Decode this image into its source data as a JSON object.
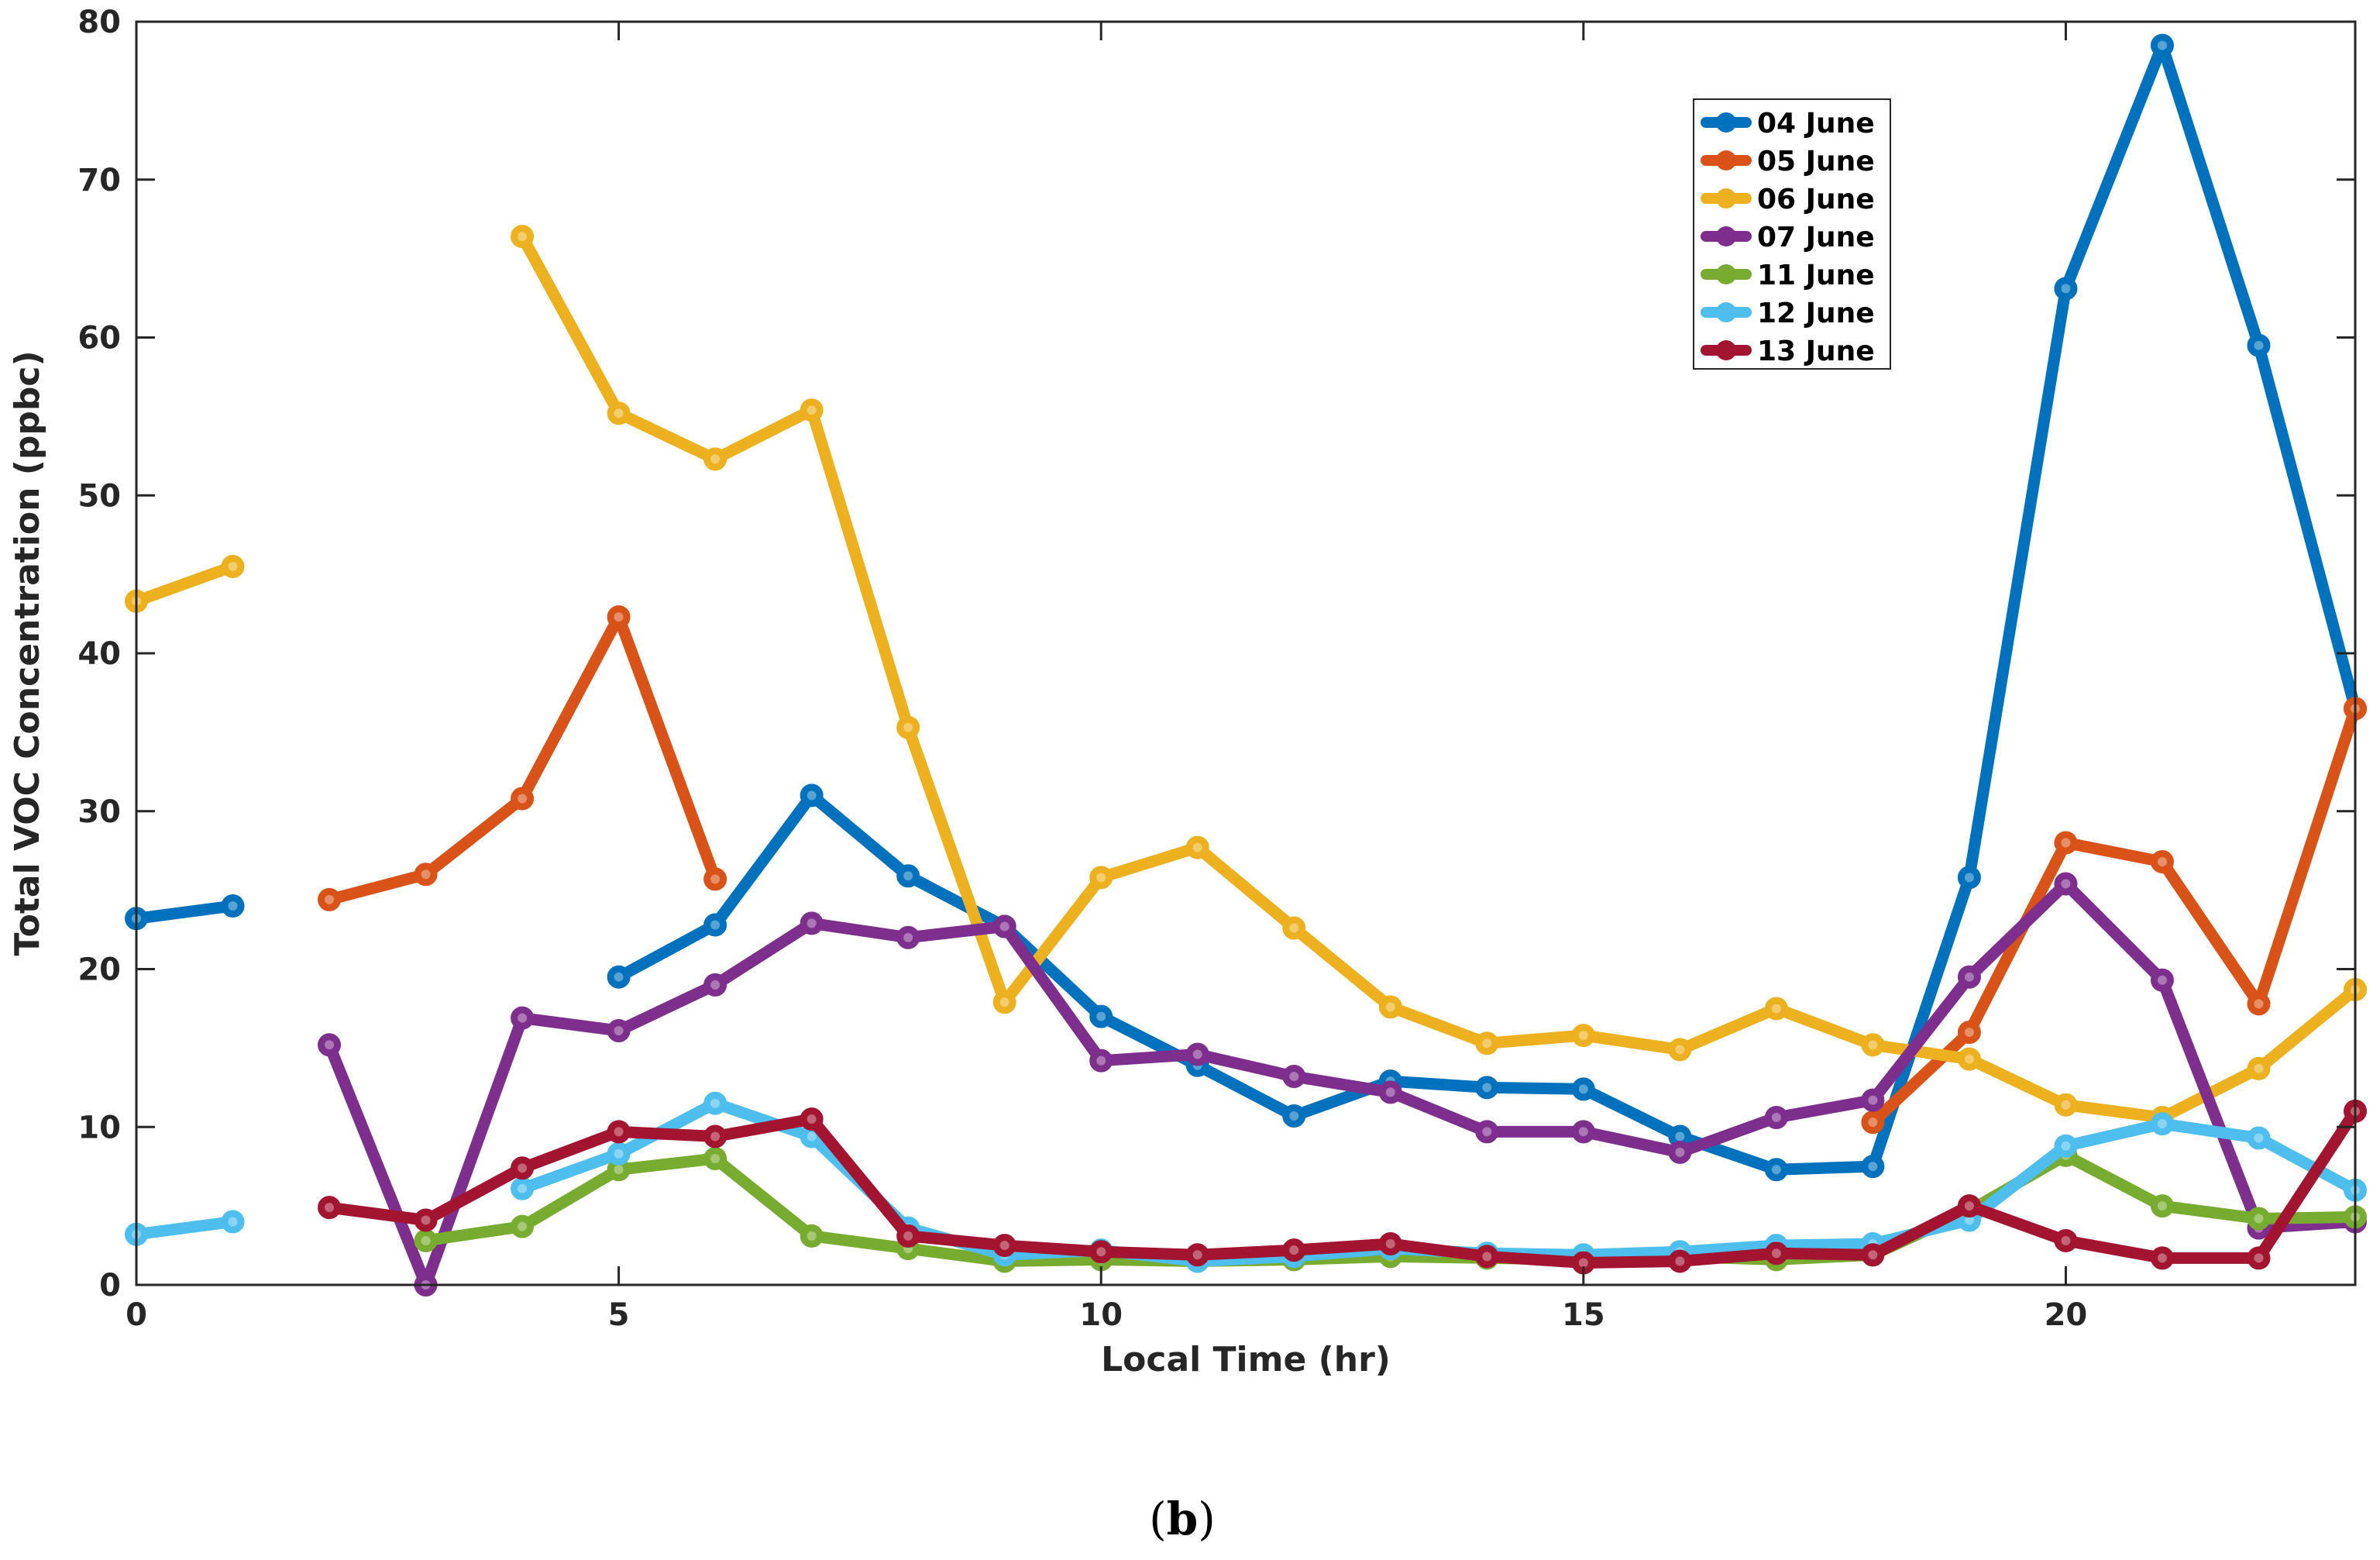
{
  "chart_data": {
    "type": "line",
    "title": "",
    "xlabel": "Local Time (hr)",
    "ylabel": "Total VOC Concentration (ppbc)",
    "xlim": [
      0,
      23
    ],
    "ylim": [
      0,
      80
    ],
    "xticks": [
      0,
      5,
      10,
      15,
      20
    ],
    "yticks": [
      0,
      10,
      20,
      30,
      40,
      50,
      60,
      70,
      80
    ],
    "grid": false,
    "legend_position": "top-right",
    "panel_label": {
      "open": "(",
      "letter": "b",
      "close": ")"
    },
    "x": [
      0,
      1,
      2,
      3,
      4,
      5,
      6,
      7,
      8,
      9,
      10,
      11,
      12,
      13,
      14,
      15,
      16,
      17,
      18,
      19,
      20,
      21,
      22,
      23
    ],
    "series": [
      {
        "name": "04 June",
        "color": "#0072BD",
        "values": [
          23.2,
          24.0,
          null,
          null,
          null,
          19.5,
          22.8,
          31.0,
          25.9,
          22.7,
          17.0,
          13.9,
          10.7,
          12.9,
          12.5,
          12.4,
          9.4,
          7.3,
          7.5,
          25.8,
          63.1,
          78.5,
          59.5,
          36.5
        ]
      },
      {
        "name": "05 June",
        "color": "#D95319",
        "values": [
          null,
          null,
          24.4,
          26.0,
          30.8,
          42.3,
          25.7,
          null,
          null,
          null,
          null,
          null,
          null,
          null,
          null,
          null,
          null,
          null,
          10.3,
          16.0,
          28.0,
          26.8,
          17.8,
          36.5
        ]
      },
      {
        "name": "06 June",
        "color": "#EDB120",
        "values": [
          43.3,
          45.5,
          null,
          null,
          66.4,
          55.2,
          52.3,
          55.4,
          35.3,
          17.9,
          25.8,
          27.7,
          22.6,
          17.6,
          15.3,
          15.8,
          14.9,
          17.5,
          15.2,
          14.3,
          11.4,
          10.6,
          13.7,
          18.7
        ]
      },
      {
        "name": "07 June",
        "color": "#7E2F8E",
        "values": [
          null,
          null,
          15.2,
          0.0,
          16.9,
          16.1,
          19.0,
          22.9,
          22.0,
          22.7,
          14.2,
          14.6,
          13.2,
          12.2,
          9.7,
          9.7,
          8.4,
          10.6,
          11.7,
          19.5,
          25.4,
          19.3,
          3.6,
          4.0
        ]
      },
      {
        "name": "11 June",
        "color": "#77AC30",
        "values": [
          null,
          null,
          null,
          2.8,
          3.7,
          7.3,
          8.0,
          3.1,
          2.3,
          1.5,
          1.6,
          1.5,
          1.6,
          1.8,
          1.7,
          1.6,
          1.8,
          1.6,
          1.9,
          4.7,
          8.2,
          5.0,
          4.2,
          4.3
        ]
      },
      {
        "name": "12 June",
        "color": "#4DBEEE",
        "values": [
          3.2,
          4.0,
          null,
          null,
          6.1,
          8.3,
          11.5,
          9.4,
          3.6,
          1.9,
          2.2,
          1.5,
          1.8,
          2.3,
          2.0,
          1.9,
          2.1,
          2.5,
          2.6,
          4.1,
          8.8,
          10.2,
          9.3,
          6.0
        ]
      },
      {
        "name": "13 June",
        "color": "#A2142F",
        "values": [
          null,
          null,
          4.9,
          4.1,
          7.4,
          9.7,
          9.4,
          10.5,
          3.1,
          2.5,
          2.1,
          1.9,
          2.2,
          2.6,
          1.8,
          1.4,
          1.5,
          2.0,
          1.9,
          5.0,
          2.8,
          1.7,
          1.7,
          11.0
        ]
      }
    ]
  }
}
